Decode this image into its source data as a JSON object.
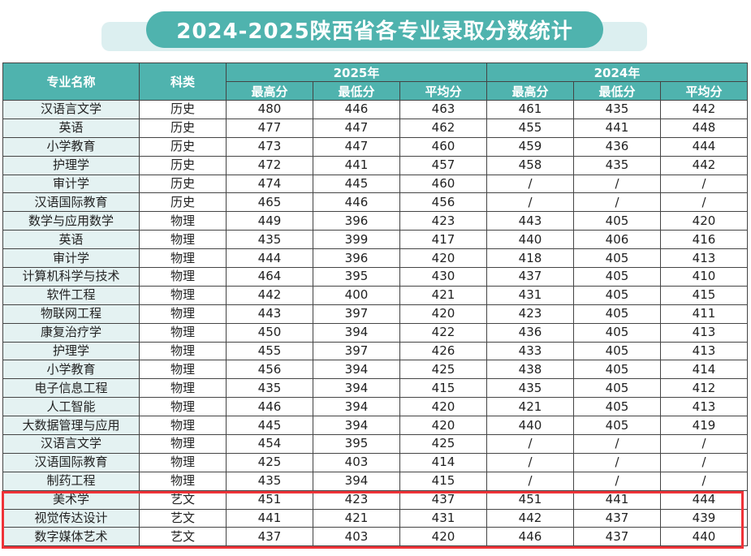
{
  "title": "2024-2025陕西省各专业录取分数统计",
  "headers": {
    "major": "专业名称",
    "subject": "科类",
    "year_2025": "2025年",
    "year_2024": "2024年",
    "max": "最高分",
    "min": "最低分",
    "avg": "平均分"
  },
  "rows": [
    {
      "major": "汉语言文学",
      "subject": "历史",
      "s25": [
        "480",
        "446",
        "463"
      ],
      "s24": [
        "461",
        "435",
        "442"
      ]
    },
    {
      "major": "英语",
      "subject": "历史",
      "s25": [
        "477",
        "447",
        "462"
      ],
      "s24": [
        "455",
        "441",
        "448"
      ]
    },
    {
      "major": "小学教育",
      "subject": "历史",
      "s25": [
        "473",
        "447",
        "460"
      ],
      "s24": [
        "459",
        "436",
        "444"
      ]
    },
    {
      "major": "护理学",
      "subject": "历史",
      "s25": [
        "472",
        "441",
        "457"
      ],
      "s24": [
        "458",
        "435",
        "442"
      ]
    },
    {
      "major": "审计学",
      "subject": "历史",
      "s25": [
        "474",
        "445",
        "460"
      ],
      "s24": [
        "/",
        "/",
        "/"
      ]
    },
    {
      "major": "汉语国际教育",
      "subject": "历史",
      "s25": [
        "465",
        "446",
        "456"
      ],
      "s24": [
        "/",
        "/",
        "/"
      ]
    },
    {
      "major": "数学与应用数学",
      "subject": "物理",
      "s25": [
        "449",
        "396",
        "423"
      ],
      "s24": [
        "443",
        "405",
        "420"
      ]
    },
    {
      "major": "英语",
      "subject": "物理",
      "s25": [
        "435",
        "399",
        "417"
      ],
      "s24": [
        "440",
        "406",
        "416"
      ]
    },
    {
      "major": "审计学",
      "subject": "物理",
      "s25": [
        "444",
        "396",
        "420"
      ],
      "s24": [
        "418",
        "405",
        "413"
      ]
    },
    {
      "major": "计算机科学与技术",
      "subject": "物理",
      "s25": [
        "464",
        "395",
        "430"
      ],
      "s24": [
        "437",
        "405",
        "410"
      ]
    },
    {
      "major": "软件工程",
      "subject": "物理",
      "s25": [
        "442",
        "400",
        "421"
      ],
      "s24": [
        "431",
        "405",
        "415"
      ]
    },
    {
      "major": "物联网工程",
      "subject": "物理",
      "s25": [
        "443",
        "397",
        "420"
      ],
      "s24": [
        "423",
        "405",
        "411"
      ]
    },
    {
      "major": "康复治疗学",
      "subject": "物理",
      "s25": [
        "450",
        "394",
        "422"
      ],
      "s24": [
        "436",
        "405",
        "413"
      ]
    },
    {
      "major": "护理学",
      "subject": "物理",
      "s25": [
        "455",
        "397",
        "426"
      ],
      "s24": [
        "433",
        "405",
        "413"
      ]
    },
    {
      "major": "小学教育",
      "subject": "物理",
      "s25": [
        "456",
        "394",
        "425"
      ],
      "s24": [
        "438",
        "405",
        "414"
      ]
    },
    {
      "major": "电子信息工程",
      "subject": "物理",
      "s25": [
        "435",
        "394",
        "415"
      ],
      "s24": [
        "435",
        "405",
        "412"
      ]
    },
    {
      "major": "人工智能",
      "subject": "物理",
      "s25": [
        "446",
        "394",
        "420"
      ],
      "s24": [
        "421",
        "405",
        "413"
      ]
    },
    {
      "major": "大数据管理与应用",
      "subject": "物理",
      "s25": [
        "445",
        "394",
        "420"
      ],
      "s24": [
        "440",
        "405",
        "419"
      ]
    },
    {
      "major": "汉语言文学",
      "subject": "物理",
      "s25": [
        "454",
        "395",
        "425"
      ],
      "s24": [
        "/",
        "/",
        "/"
      ]
    },
    {
      "major": "汉语国际教育",
      "subject": "物理",
      "s25": [
        "425",
        "403",
        "414"
      ],
      "s24": [
        "/",
        "/",
        "/"
      ]
    },
    {
      "major": "制药工程",
      "subject": "物理",
      "s25": [
        "435",
        "394",
        "415"
      ],
      "s24": [
        "/",
        "/",
        "/"
      ]
    },
    {
      "major": "美术学",
      "subject": "艺文",
      "s25": [
        "451",
        "423",
        "437"
      ],
      "s24": [
        "451",
        "441",
        "444"
      ]
    },
    {
      "major": "视觉传达设计",
      "subject": "艺文",
      "s25": [
        "441",
        "421",
        "431"
      ],
      "s24": [
        "442",
        "437",
        "439"
      ]
    },
    {
      "major": "数字媒体艺术",
      "subject": "艺文",
      "s25": [
        "437",
        "403",
        "420"
      ],
      "s24": [
        "446",
        "437",
        "440"
      ]
    }
  ],
  "colors": {
    "header_bg": "#4fb3ae",
    "name_bg": "#e4f2f2",
    "highlight": "#ef3338"
  }
}
